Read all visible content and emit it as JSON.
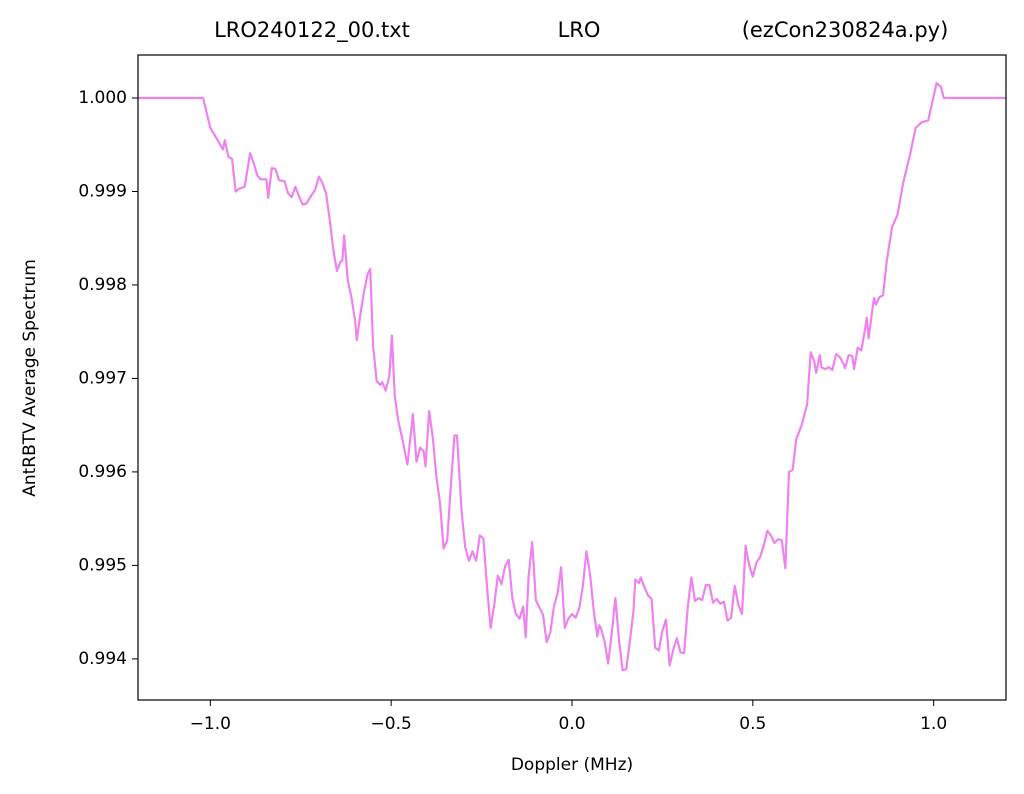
{
  "chart_data": {
    "type": "line",
    "title_left": "LRO240122_00.txt",
    "title": "LRO",
    "title_right": "(ezCon230824a.py)",
    "xlabel": "Doppler (MHz)",
    "ylabel": "AntRBTV Average Spectrum",
    "color": "#ee82ee",
    "xlim": [
      -1.2,
      1.2
    ],
    "ylim": [
      0.99356,
      1.00046
    ],
    "xticks": [
      {
        "value": -1,
        "label": "−1.0"
      },
      {
        "value": -0.5,
        "label": "−0.5"
      },
      {
        "value": 0,
        "label": "0.0"
      },
      {
        "value": 0.5,
        "label": "0.5"
      },
      {
        "value": 1,
        "label": "1.0"
      }
    ],
    "yticks": [
      0.994,
      0.995,
      0.996,
      0.997,
      0.998,
      0.999,
      {
        "value": 1,
        "label": "1.000"
      }
    ],
    "x": [
      -1.2,
      -1.02,
      -1.0,
      -0.98,
      -0.965,
      -0.96,
      -0.95,
      -0.94,
      -0.93,
      -0.92,
      -0.905,
      -0.89,
      -0.88,
      -0.87,
      -0.86,
      -0.845,
      -0.84,
      -0.83,
      -0.82,
      -0.81,
      -0.795,
      -0.785,
      -0.775,
      -0.765,
      -0.755,
      -0.745,
      -0.735,
      -0.725,
      -0.71,
      -0.7,
      -0.69,
      -0.68,
      -0.67,
      -0.66,
      -0.65,
      -0.64,
      -0.635,
      -0.63,
      -0.62,
      -0.61,
      -0.6,
      -0.595,
      -0.585,
      -0.575,
      -0.565,
      -0.558,
      -0.55,
      -0.54,
      -0.53,
      -0.525,
      -0.515,
      -0.505,
      -0.498,
      -0.49,
      -0.48,
      -0.47,
      -0.46,
      -0.455,
      -0.445,
      -0.44,
      -0.43,
      -0.42,
      -0.41,
      -0.405,
      -0.395,
      -0.385,
      -0.375,
      -0.365,
      -0.355,
      -0.345,
      -0.335,
      -0.325,
      -0.318,
      -0.305,
      -0.295,
      -0.285,
      -0.275,
      -0.265,
      -0.255,
      -0.245,
      -0.235,
      -0.225,
      -0.215,
      -0.205,
      -0.195,
      -0.185,
      -0.175,
      -0.165,
      -0.155,
      -0.145,
      -0.135,
      -0.128,
      -0.12,
      -0.11,
      -0.1,
      -0.09,
      -0.08,
      -0.07,
      -0.06,
      -0.05,
      -0.04,
      -0.03,
      -0.02,
      -0.01,
      0.0,
      0.01,
      0.02,
      0.03,
      0.04,
      0.05,
      0.06,
      0.07,
      0.075,
      0.08,
      0.09,
      0.1,
      0.11,
      0.12,
      0.13,
      0.14,
      0.15,
      0.16,
      0.17,
      0.175,
      0.185,
      0.19,
      0.2,
      0.21,
      0.22,
      0.23,
      0.24,
      0.25,
      0.26,
      0.27,
      0.28,
      0.29,
      0.3,
      0.31,
      0.32,
      0.33,
      0.34,
      0.35,
      0.36,
      0.37,
      0.38,
      0.39,
      0.4,
      0.41,
      0.42,
      0.43,
      0.44,
      0.45,
      0.46,
      0.47,
      0.48,
      0.49,
      0.5,
      0.51,
      0.52,
      0.53,
      0.54,
      0.55,
      0.56,
      0.57,
      0.58,
      0.59,
      0.6,
      0.61,
      0.62,
      0.635,
      0.65,
      0.66,
      0.67,
      0.675,
      0.685,
      0.69,
      0.7,
      0.71,
      0.72,
      0.73,
      0.74,
      0.75,
      0.755,
      0.765,
      0.775,
      0.78,
      0.79,
      0.8,
      0.81,
      0.815,
      0.82,
      0.83,
      0.835,
      0.84,
      0.85,
      0.86,
      0.87,
      0.885,
      0.9,
      0.915,
      0.935,
      0.95,
      0.967,
      0.985,
      0.997,
      1.008,
      1.02,
      1.028,
      1.2
    ],
    "values": [
      1.0,
      1.0,
      0.99968,
      0.99955,
      0.99945,
      0.99955,
      0.99937,
      0.99935,
      0.999,
      0.99903,
      0.99905,
      0.99941,
      0.9993,
      0.99917,
      0.99913,
      0.99913,
      0.99893,
      0.99925,
      0.99924,
      0.99912,
      0.99911,
      0.99898,
      0.99894,
      0.99905,
      0.99895,
      0.99886,
      0.99887,
      0.99893,
      0.99902,
      0.99916,
      0.99909,
      0.99898,
      0.9987,
      0.99838,
      0.99815,
      0.99825,
      0.99826,
      0.99853,
      0.99805,
      0.99787,
      0.99763,
      0.99741,
      0.99769,
      0.99793,
      0.99812,
      0.99817,
      0.99735,
      0.99697,
      0.99693,
      0.99696,
      0.99687,
      0.99703,
      0.99746,
      0.99681,
      0.99654,
      0.99637,
      0.99617,
      0.99608,
      0.99643,
      0.99662,
      0.99611,
      0.99626,
      0.99622,
      0.99606,
      0.99665,
      0.99637,
      0.99595,
      0.99567,
      0.99518,
      0.99527,
      0.99585,
      0.99639,
      0.99639,
      0.99556,
      0.99519,
      0.99505,
      0.99515,
      0.99505,
      0.99532,
      0.99529,
      0.99477,
      0.99433,
      0.99458,
      0.99489,
      0.9948,
      0.99499,
      0.99506,
      0.99465,
      0.99448,
      0.99443,
      0.99456,
      0.99423,
      0.99488,
      0.99525,
      0.99463,
      0.99455,
      0.99447,
      0.99418,
      0.99428,
      0.99456,
      0.9947,
      0.99498,
      0.99433,
      0.99443,
      0.99448,
      0.99444,
      0.99454,
      0.99478,
      0.99515,
      0.9949,
      0.99452,
      0.99424,
      0.99436,
      0.99433,
      0.99419,
      0.99395,
      0.99428,
      0.99465,
      0.9942,
      0.99388,
      0.99389,
      0.99419,
      0.99451,
      0.99485,
      0.99481,
      0.99487,
      0.99477,
      0.99468,
      0.99464,
      0.99412,
      0.99409,
      0.9943,
      0.99442,
      0.99393,
      0.9941,
      0.99422,
      0.99407,
      0.99406,
      0.99455,
      0.99487,
      0.99462,
      0.99465,
      0.99463,
      0.99479,
      0.99479,
      0.9946,
      0.99464,
      0.99459,
      0.99461,
      0.99441,
      0.99444,
      0.99478,
      0.99458,
      0.99448,
      0.99521,
      0.995,
      0.99488,
      0.99503,
      0.99509,
      0.99521,
      0.99537,
      0.99532,
      0.99524,
      0.99528,
      0.99527,
      0.99497,
      0.996,
      0.99602,
      0.99635,
      0.9965,
      0.99672,
      0.99728,
      0.99718,
      0.99706,
      0.99725,
      0.99712,
      0.9971,
      0.99712,
      0.99709,
      0.99726,
      0.99723,
      0.99716,
      0.99711,
      0.99725,
      0.99724,
      0.9971,
      0.99733,
      0.9973,
      0.99752,
      0.99765,
      0.99743,
      0.99772,
      0.99786,
      0.99779,
      0.99787,
      0.99789,
      0.99825,
      0.99862,
      0.99875,
      0.99908,
      0.9994,
      0.99968,
      0.99974,
      0.99976,
      0.99997,
      1.00016,
      1.00012,
      1.0,
      1.0
    ]
  }
}
